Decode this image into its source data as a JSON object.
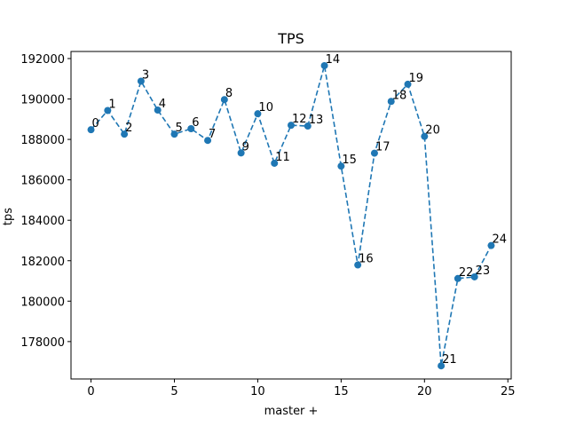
{
  "chart_data": {
    "type": "line",
    "title": "TPS",
    "xlabel": "master +",
    "ylabel": "tps",
    "xlim": [
      -1.2,
      25.2
    ],
    "ylim": [
      176150,
      192350
    ],
    "xticks": [
      0,
      5,
      10,
      15,
      20,
      25
    ],
    "yticks": [
      178000,
      180000,
      182000,
      184000,
      186000,
      188000,
      190000,
      192000
    ],
    "grid": false,
    "line_style": "dashed",
    "marker": "circle",
    "color": "#1f77b4",
    "series": [
      {
        "x": [
          0,
          1,
          2,
          3,
          4,
          5,
          6,
          7,
          8,
          9,
          10,
          11,
          12,
          13,
          14,
          15,
          16,
          17,
          18,
          19,
          20,
          21,
          22,
          23,
          24
        ],
        "values": [
          188480,
          189430,
          188260,
          190880,
          189450,
          188260,
          188530,
          187950,
          189970,
          187330,
          189270,
          186820,
          188700,
          188660,
          191650,
          186680,
          181790,
          187320,
          189880,
          190730,
          188150,
          176800,
          181120,
          181200,
          182750
        ],
        "point_labels": [
          "0",
          "1",
          "2",
          "3",
          "4",
          "5",
          "6",
          "7",
          "8",
          "9",
          "10",
          "11",
          "12",
          "13",
          "14",
          "15",
          "16",
          "17",
          "18",
          "19",
          "20",
          "21",
          "22",
          "23",
          "24"
        ]
      }
    ]
  }
}
